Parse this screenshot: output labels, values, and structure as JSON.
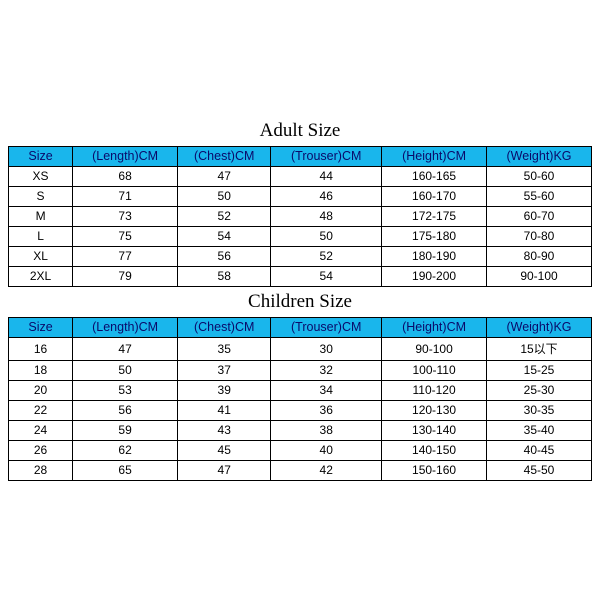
{
  "styling": {
    "header_bg": "#19b6ec",
    "header_text_color": "#0a0a6a",
    "cell_text_color": "#000000",
    "border_color": "#000000",
    "title_font_family": "Times New Roman",
    "title_fontsize_pt": 14,
    "cell_fontsize_pt": 9,
    "header_fontsize_pt": 9.5
  },
  "columns": [
    {
      "key": "size",
      "label": "Size",
      "width_pct": 11
    },
    {
      "key": "length",
      "label": "(Length)CM",
      "width_pct": 18
    },
    {
      "key": "chest",
      "label": "(Chest)CM",
      "width_pct": 16
    },
    {
      "key": "trouser",
      "label": "(Trouser)CM",
      "width_pct": 19
    },
    {
      "key": "height",
      "label": "(Height)CM",
      "width_pct": 18
    },
    {
      "key": "weight",
      "label": "(Weight)KG",
      "width_pct": 18
    }
  ],
  "adult": {
    "title": "Adult Size",
    "rows": [
      {
        "size": "XS",
        "length": "68",
        "chest": "47",
        "trouser": "44",
        "height": "160-165",
        "weight": "50-60"
      },
      {
        "size": "S",
        "length": "71",
        "chest": "50",
        "trouser": "46",
        "height": "160-170",
        "weight": "55-60"
      },
      {
        "size": "M",
        "length": "73",
        "chest": "52",
        "trouser": "48",
        "height": "172-175",
        "weight": "60-70"
      },
      {
        "size": "L",
        "length": "75",
        "chest": "54",
        "trouser": "50",
        "height": "175-180",
        "weight": "70-80"
      },
      {
        "size": "XL",
        "length": "77",
        "chest": "56",
        "trouser": "52",
        "height": "180-190",
        "weight": "80-90"
      },
      {
        "size": "2XL",
        "length": "79",
        "chest": "58",
        "trouser": "54",
        "height": "190-200",
        "weight": "90-100"
      }
    ]
  },
  "children": {
    "title": "Children Size",
    "rows": [
      {
        "size": "16",
        "length": "47",
        "chest": "35",
        "trouser": "30",
        "height": "90-100",
        "weight": "15以下"
      },
      {
        "size": "18",
        "length": "50",
        "chest": "37",
        "trouser": "32",
        "height": "100-110",
        "weight": "15-25"
      },
      {
        "size": "20",
        "length": "53",
        "chest": "39",
        "trouser": "34",
        "height": "110-120",
        "weight": "25-30"
      },
      {
        "size": "22",
        "length": "56",
        "chest": "41",
        "trouser": "36",
        "height": "120-130",
        "weight": "30-35"
      },
      {
        "size": "24",
        "length": "59",
        "chest": "43",
        "trouser": "38",
        "height": "130-140",
        "weight": "35-40"
      },
      {
        "size": "26",
        "length": "62",
        "chest": "45",
        "trouser": "40",
        "height": "140-150",
        "weight": "40-45"
      },
      {
        "size": "28",
        "length": "65",
        "chest": "47",
        "trouser": "42",
        "height": "150-160",
        "weight": "45-50"
      }
    ]
  }
}
